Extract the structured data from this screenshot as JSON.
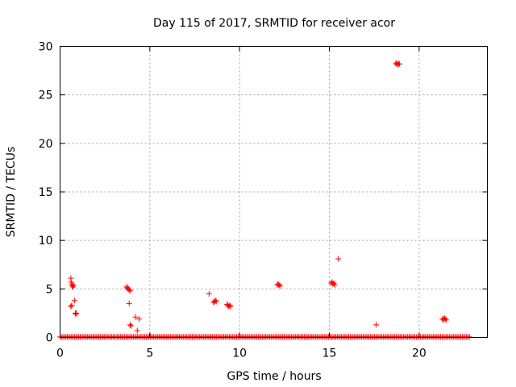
{
  "chart_data": {
    "type": "scatter",
    "title": "Day 115 of 2017, SRMTID for receiver acor",
    "xlabel": "GPS time / hours",
    "ylabel": "SRMTID / TECUs",
    "xlim": [
      0,
      23.8
    ],
    "ylim": [
      0,
      30
    ],
    "xticks": [
      0,
      5,
      10,
      15,
      20
    ],
    "yticks": [
      0,
      5,
      10,
      15,
      20,
      25,
      30
    ],
    "grid": true,
    "marker": "plus",
    "color": "#ff0000",
    "baseline": {
      "y": 0.05,
      "x_start": 0.0,
      "x_end": 22.8,
      "step": 0.08
    },
    "points": [
      {
        "x": 0.6,
        "y": 6.1
      },
      {
        "x": 0.62,
        "y": 5.7
      },
      {
        "x": 0.65,
        "y": 5.5
      },
      {
        "x": 0.68,
        "y": 5.3
      },
      {
        "x": 0.72,
        "y": 5.2
      },
      {
        "x": 0.75,
        "y": 5.4
      },
      {
        "x": 0.6,
        "y": 3.2
      },
      {
        "x": 0.65,
        "y": 3.3
      },
      {
        "x": 0.8,
        "y": 3.8
      },
      {
        "x": 0.85,
        "y": 2.5
      },
      {
        "x": 0.88,
        "y": 2.4
      },
      {
        "x": 0.9,
        "y": 2.5
      },
      {
        "x": 3.7,
        "y": 5.2
      },
      {
        "x": 3.75,
        "y": 5.1
      },
      {
        "x": 3.8,
        "y": 5.0
      },
      {
        "x": 3.85,
        "y": 4.9
      },
      {
        "x": 3.9,
        "y": 4.8
      },
      {
        "x": 3.85,
        "y": 3.5
      },
      {
        "x": 3.9,
        "y": 1.3
      },
      {
        "x": 3.95,
        "y": 1.2
      },
      {
        "x": 4.2,
        "y": 2.1
      },
      {
        "x": 4.4,
        "y": 1.9
      },
      {
        "x": 4.3,
        "y": 0.7
      },
      {
        "x": 8.3,
        "y": 4.5
      },
      {
        "x": 8.55,
        "y": 3.6
      },
      {
        "x": 8.6,
        "y": 3.7
      },
      {
        "x": 8.65,
        "y": 3.8
      },
      {
        "x": 8.7,
        "y": 3.7
      },
      {
        "x": 9.3,
        "y": 3.4
      },
      {
        "x": 9.35,
        "y": 3.3
      },
      {
        "x": 9.4,
        "y": 3.2
      },
      {
        "x": 9.45,
        "y": 3.3
      },
      {
        "x": 9.5,
        "y": 3.2
      },
      {
        "x": 12.1,
        "y": 5.4
      },
      {
        "x": 12.15,
        "y": 5.5
      },
      {
        "x": 12.2,
        "y": 5.4
      },
      {
        "x": 12.25,
        "y": 5.3
      },
      {
        "x": 15.1,
        "y": 5.6
      },
      {
        "x": 15.15,
        "y": 5.7
      },
      {
        "x": 15.2,
        "y": 5.5
      },
      {
        "x": 15.25,
        "y": 5.6
      },
      {
        "x": 15.3,
        "y": 5.4
      },
      {
        "x": 15.5,
        "y": 8.1
      },
      {
        "x": 17.6,
        "y": 1.3
      },
      {
        "x": 18.7,
        "y": 28.2
      },
      {
        "x": 18.75,
        "y": 28.3
      },
      {
        "x": 18.8,
        "y": 28.1
      },
      {
        "x": 18.85,
        "y": 28.2
      },
      {
        "x": 18.9,
        "y": 28.2
      },
      {
        "x": 21.3,
        "y": 1.9
      },
      {
        "x": 21.35,
        "y": 1.8
      },
      {
        "x": 21.4,
        "y": 2.0
      },
      {
        "x": 21.45,
        "y": 1.9
      },
      {
        "x": 21.5,
        "y": 1.8
      }
    ]
  }
}
